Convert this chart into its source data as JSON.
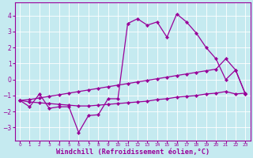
{
  "background_color": "#c5eaf0",
  "line_color": "#990099",
  "grid_color": "#aacccc",
  "xlabel": "Windchill (Refroidissement éolien,°C)",
  "yticks": [
    -3,
    -2,
    -1,
    0,
    1,
    2,
    3,
    4
  ],
  "xtick_labels": [
    "0",
    "1",
    "2",
    "3",
    "4",
    "5",
    "6",
    "7",
    "8",
    "9",
    "10",
    "11",
    "12",
    "13",
    "14",
    "15",
    "16",
    "17",
    "18",
    "19",
    "20",
    "21",
    "22",
    "23"
  ],
  "ylim": [
    -3.8,
    4.8
  ],
  "xlim": [
    -0.5,
    23.5
  ],
  "series1_y": [
    -1.3,
    -1.7,
    -0.9,
    -1.8,
    -1.7,
    -1.7,
    -3.3,
    -2.25,
    -2.2,
    -1.2,
    -1.2,
    3.5,
    3.8,
    3.4,
    3.6,
    2.65,
    4.1,
    3.6,
    2.9,
    2.0,
    1.3,
    0.0,
    0.6,
    -0.9
  ],
  "series2_y": [
    -1.3,
    -1.25,
    -1.15,
    -1.05,
    -0.95,
    -0.85,
    -0.75,
    -0.65,
    -0.55,
    -0.45,
    -0.35,
    -0.25,
    -0.15,
    -0.05,
    0.05,
    0.15,
    0.25,
    0.35,
    0.45,
    0.55,
    0.65,
    1.3,
    0.6,
    -0.9
  ],
  "series3_y": [
    -1.3,
    -1.4,
    -1.45,
    -1.5,
    -1.55,
    -1.6,
    -1.65,
    -1.65,
    -1.6,
    -1.55,
    -1.5,
    -1.45,
    -1.4,
    -1.35,
    -1.25,
    -1.2,
    -1.1,
    -1.05,
    -1.0,
    -0.9,
    -0.85,
    -0.75,
    -0.9,
    -0.85
  ]
}
